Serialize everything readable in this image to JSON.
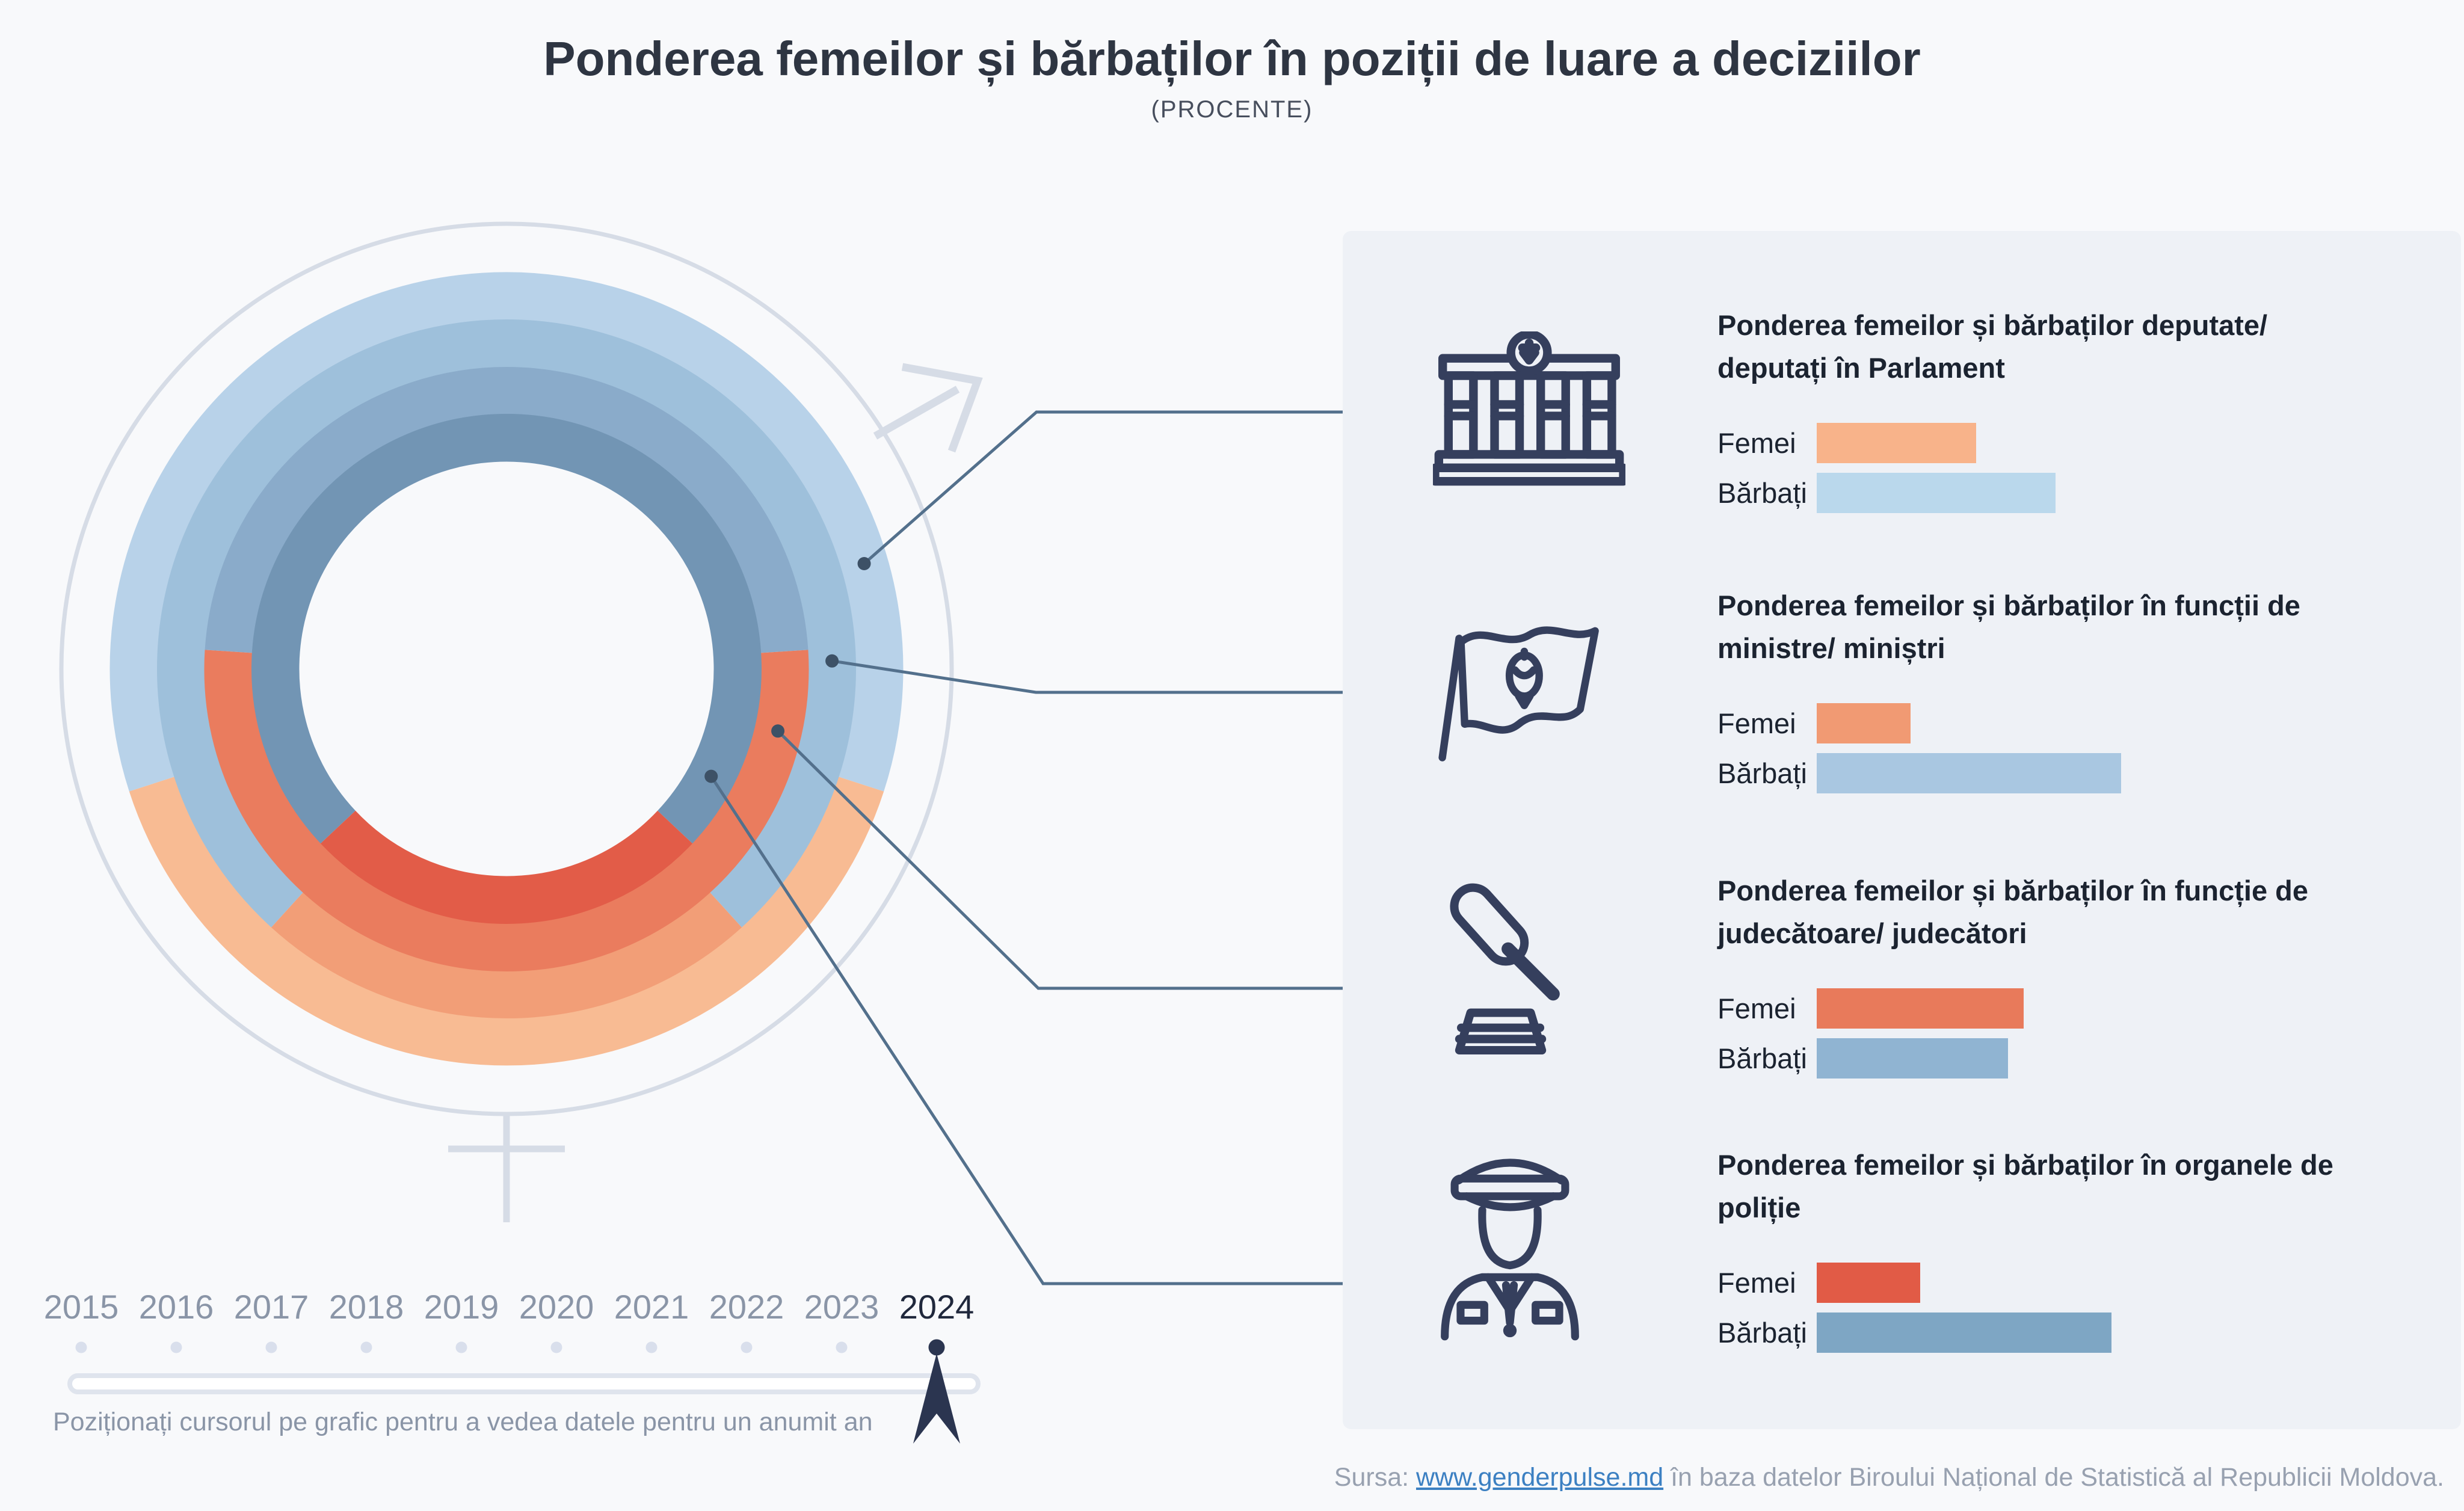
{
  "title": "Ponderea femeilor și bărbaților în poziții de luare a deciziilor",
  "subtitle": "(PROCENTE)",
  "colors": {
    "page_bg": "#f8f9fb",
    "panel_bg": "#eef1f6",
    "title_text": "#2e3542",
    "gray_text": "#8a95a7",
    "dark_text": "#1b2330",
    "link_blue": "#3c80c2",
    "callout_line": "#53708c",
    "callout_dot": "#3d5166",
    "gender_symbol": "#d6dce6",
    "icon_stroke": "#353f5d",
    "selected_marker": "#2b3550"
  },
  "chart_data": {
    "type": "donut",
    "unit": "percent",
    "rings_order": "outer_to_inner",
    "year_selected": "2024",
    "legend": [
      "Femei",
      "Bărbați"
    ],
    "categories": [
      {
        "id": "parlament",
        "icon": "parliament-building-icon",
        "title": "Ponderea femeilor și bărbaților deputate/ deputați în Parlament",
        "series": [
          {
            "name": "Femei",
            "value": 40.0,
            "display": "40,0%"
          },
          {
            "name": "Bărbați",
            "value": 60.0,
            "display": "60,0%"
          }
        ],
        "ring_colors": {
          "femei": "#f8bb93",
          "barbati": "#b8d2e9"
        },
        "bar_colors": {
          "femei": "#f8b38a",
          "barbati": "#bad8ec"
        }
      },
      {
        "id": "ministri",
        "icon": "flag-icon",
        "title": "Ponderea femeilor și bărbaților în funcții de ministre/ miniștri",
        "series": [
          {
            "name": "Femei",
            "value": 23.5,
            "display": "23,5%"
          },
          {
            "name": "Bărbați",
            "value": 76.5,
            "display": "76,5%"
          }
        ],
        "ring_colors": {
          "femei": "#f29e77",
          "barbati": "#9ec0db"
        },
        "bar_colors": {
          "femei": "#f19a73",
          "barbati": "#a9c7e1"
        }
      },
      {
        "id": "judecatori",
        "icon": "gavel-icon",
        "title": "Ponderea femeilor și bărbaților în funcție de judecătoare/ judecători",
        "series": [
          {
            "name": "Femei",
            "value": 52.0,
            "display": "52,0%"
          },
          {
            "name": "Bărbați",
            "value": 48.0,
            "display": "48,0%"
          }
        ],
        "ring_colors": {
          "femei": "#ea7c5e",
          "barbati": "#8aabca"
        },
        "bar_colors": {
          "femei": "#e87a5b",
          "barbati": "#90b4d2"
        }
      },
      {
        "id": "politie",
        "icon": "police-officer-icon",
        "title": "Ponderea femeilor și bărbaților în organele de poliție",
        "series": [
          {
            "name": "Femei",
            "value": 26.0,
            "display": "26,0%"
          },
          {
            "name": "Bărbați",
            "value": 74.0,
            "display": "74,0%"
          }
        ],
        "ring_colors": {
          "femei": "#e25c48",
          "barbati": "#7295b4"
        },
        "bar_colors": {
          "femei": "#e15b46",
          "barbati": "#7ea6c4"
        }
      }
    ]
  },
  "slider": {
    "years": [
      "2015",
      "2016",
      "2017",
      "2018",
      "2019",
      "2020",
      "2021",
      "2022",
      "2023",
      "2024"
    ],
    "selected": "2024",
    "note": "Poziționați cursorul pe grafic pentru a vedea datele pentru un anumit an"
  },
  "source": {
    "prefix": "Sursa: ",
    "link": "www.genderpulse.md",
    "suffix": " în baza datelor Biroului Național de Statistică al Republicii Moldova."
  }
}
